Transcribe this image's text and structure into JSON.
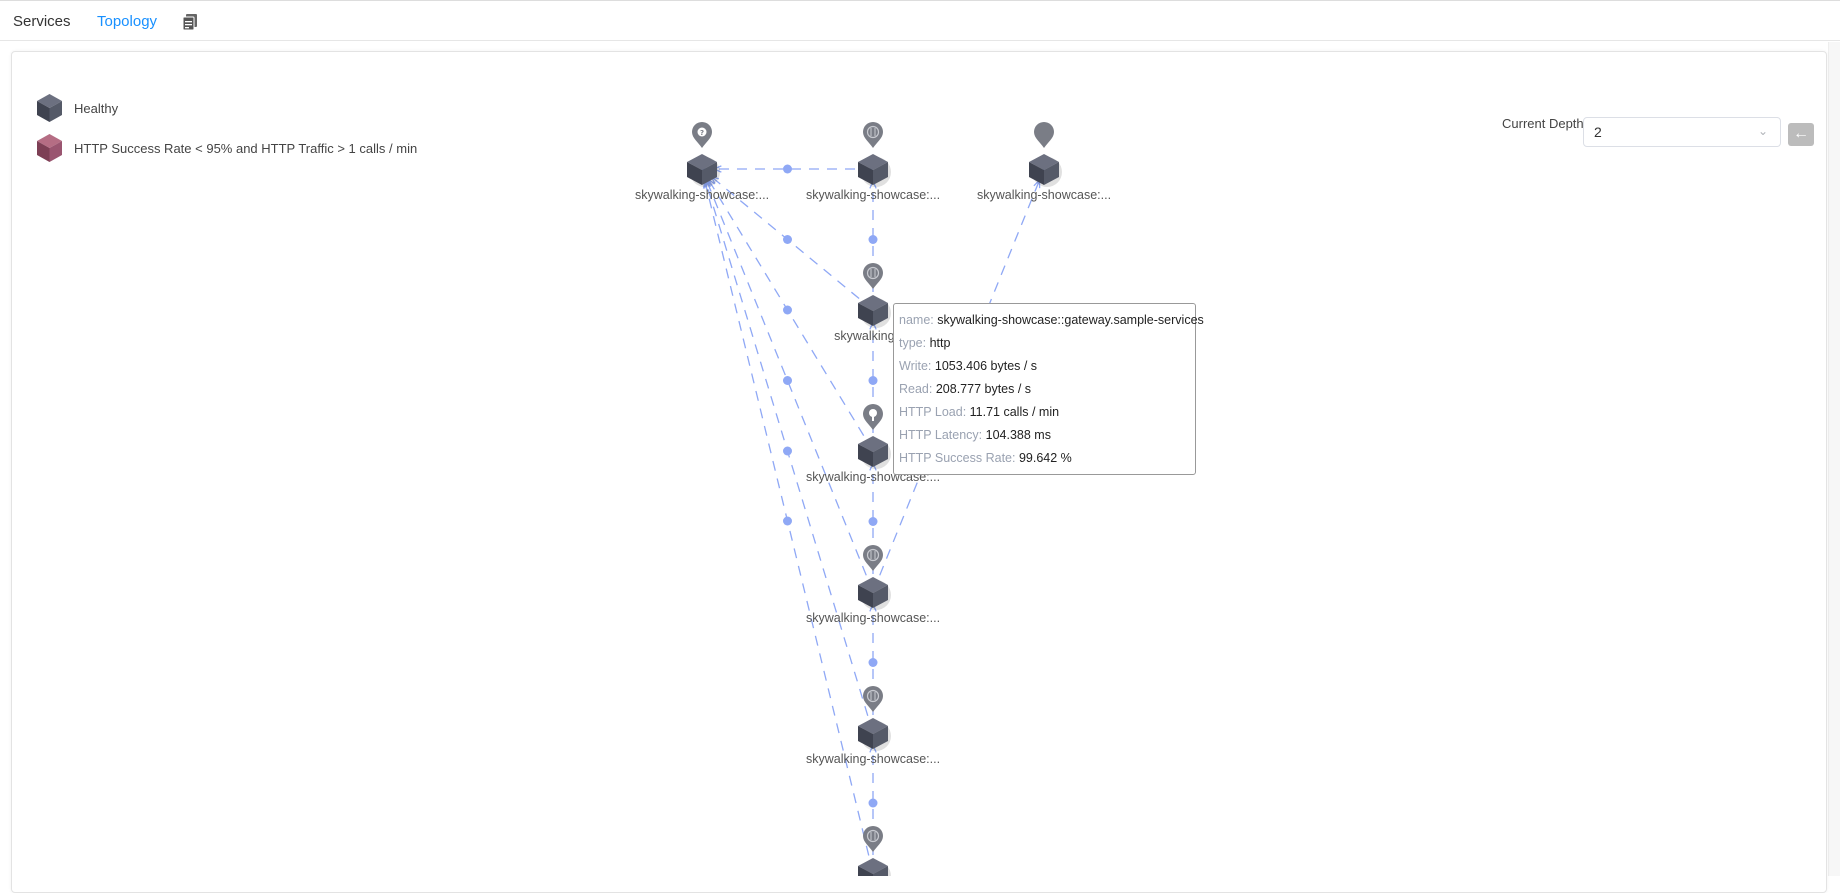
{
  "tabs": {
    "services": "Services",
    "topology": "Topology",
    "doc_icon": "documents-icon"
  },
  "legend": [
    {
      "label": "Healthy",
      "color": "#4b4f5c"
    },
    {
      "label": "HTTP Success Rate < 95% and HTTP Traffic > 1 calls / min",
      "color": "#a0526a"
    }
  ],
  "depth": {
    "label": "Current Depth",
    "value": "2",
    "back_icon": "arrow-left-icon"
  },
  "colors": {
    "accent": "#1890ff",
    "edge": "#8fa8f5",
    "node": "#4b4f5c",
    "pin": "#7a7d86"
  },
  "nodes": [
    {
      "id": "a1",
      "label": "skywalking-showcase:...",
      "pin_icon": "question-icon"
    },
    {
      "id": "b1",
      "label": "skywalking-showcase:...",
      "pin_icon": "http-icon"
    },
    {
      "id": "c1",
      "label": "skywalking-showcase:...",
      "pin_icon": "none"
    },
    {
      "id": "b2",
      "label": "skywalking-sh",
      "pin_icon": "http-icon"
    },
    {
      "id": "b3",
      "label": "skywalking-showcase:...",
      "pin_icon": "key-icon"
    },
    {
      "id": "b4",
      "label": "skywalking-showcase:...",
      "pin_icon": "http-icon"
    },
    {
      "id": "b5",
      "label": "skywalking-showcase:...",
      "pin_icon": "http-icon"
    },
    {
      "id": "b6",
      "label": "",
      "pin_icon": "http-icon"
    }
  ],
  "edges": [
    [
      "b1",
      "a1"
    ],
    [
      "b2",
      "a1"
    ],
    [
      "b2",
      "b1"
    ],
    [
      "b3",
      "a1"
    ],
    [
      "b4",
      "a1"
    ],
    [
      "b5",
      "a1"
    ],
    [
      "b6",
      "a1"
    ],
    [
      "b3",
      "b2"
    ],
    [
      "b4",
      "b3"
    ],
    [
      "b5",
      "b4"
    ],
    [
      "b6",
      "b5"
    ],
    [
      "b4",
      "c1"
    ]
  ],
  "tooltip": [
    {
      "k": "name:",
      "v": "skywalking-showcase::gateway.sample-services"
    },
    {
      "k": "type:",
      "v": "http"
    },
    {
      "k": "Write:",
      "v": "1053.406 bytes / s"
    },
    {
      "k": "Read:",
      "v": "208.777 bytes / s"
    },
    {
      "k": "HTTP Load:",
      "v": "11.71 calls / min"
    },
    {
      "k": "HTTP Latency:",
      "v": "104.388 ms"
    },
    {
      "k": "HTTP Success Rate:",
      "v": "99.642 %"
    }
  ]
}
